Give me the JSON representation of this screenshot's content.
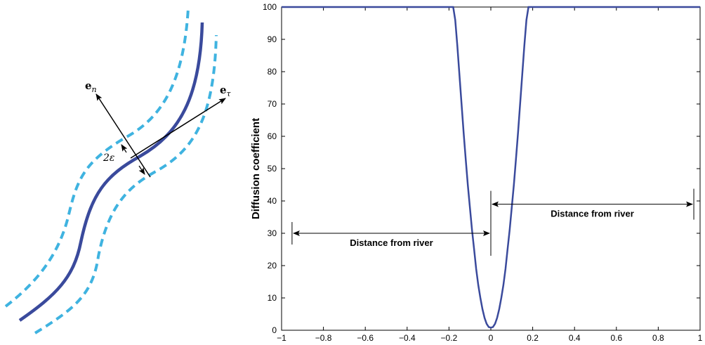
{
  "colors": {
    "river": "#3a4a9c",
    "band": "#3fb3e0",
    "curve": "#3a4a9c",
    "axis": "#000000"
  },
  "diagram": {
    "labels": {
      "normal_bold": "e",
      "normal_sub": "n",
      "tangent_bold": "e",
      "tangent_sub": "τ",
      "width": "2ε"
    }
  },
  "chart_data": {
    "type": "line",
    "title": "",
    "xlabel": "",
    "ylabel": "Diffusion coefficient",
    "xlim": [
      -1,
      1
    ],
    "ylim": [
      0,
      100
    ],
    "xticks": [
      -1,
      -0.8,
      -0.6,
      -0.4,
      -0.2,
      0,
      0.2,
      0.4,
      0.6,
      0.8,
      1
    ],
    "xtick_labels": [
      "−1",
      "−0.8",
      "−0.6",
      "−0.4",
      "−0.2",
      "0",
      "0.2",
      "0.4",
      "0.6",
      "0.8",
      "1"
    ],
    "yticks": [
      0,
      10,
      20,
      30,
      40,
      50,
      60,
      70,
      80,
      90,
      100
    ],
    "ytick_labels": [
      "0",
      "10",
      "20",
      "30",
      "40",
      "50",
      "60",
      "70",
      "80",
      "90",
      "100"
    ],
    "grid": false,
    "series": [
      {
        "x": [
          -1,
          -0.2,
          -0.19,
          -0.18,
          -0.17,
          -0.16,
          -0.15,
          -0.14,
          -0.13,
          -0.12,
          -0.11,
          -0.1,
          -0.09,
          -0.08,
          -0.07,
          -0.06,
          -0.05,
          -0.04,
          -0.03,
          -0.02,
          -0.01,
          0,
          0.01,
          0.02,
          0.03,
          0.04,
          0.05,
          0.06,
          0.07,
          0.08,
          0.09,
          0.1,
          0.11,
          0.12,
          0.13,
          0.14,
          0.15,
          0.16,
          0.17,
          0.18,
          0.19,
          0.2,
          1
        ],
        "y": [
          100,
          100,
          100,
          100,
          96,
          88,
          79,
          70,
          61,
          53,
          45,
          38,
          31,
          25,
          19,
          14,
          10,
          6.5,
          3.8,
          2.0,
          1.0,
          0.8,
          1.0,
          2.0,
          3.8,
          6.5,
          10,
          14,
          19,
          25,
          31,
          38,
          45,
          53,
          61,
          70,
          79,
          88,
          96,
          100,
          100,
          100,
          100
        ]
      }
    ],
    "annotations": [
      {
        "text": "Distance from river",
        "x_from": -0.95,
        "x_to": 0,
        "y": 30
      },
      {
        "text": "Distance from river",
        "x_from": 0,
        "x_to": 0.97,
        "y": 39
      }
    ]
  }
}
